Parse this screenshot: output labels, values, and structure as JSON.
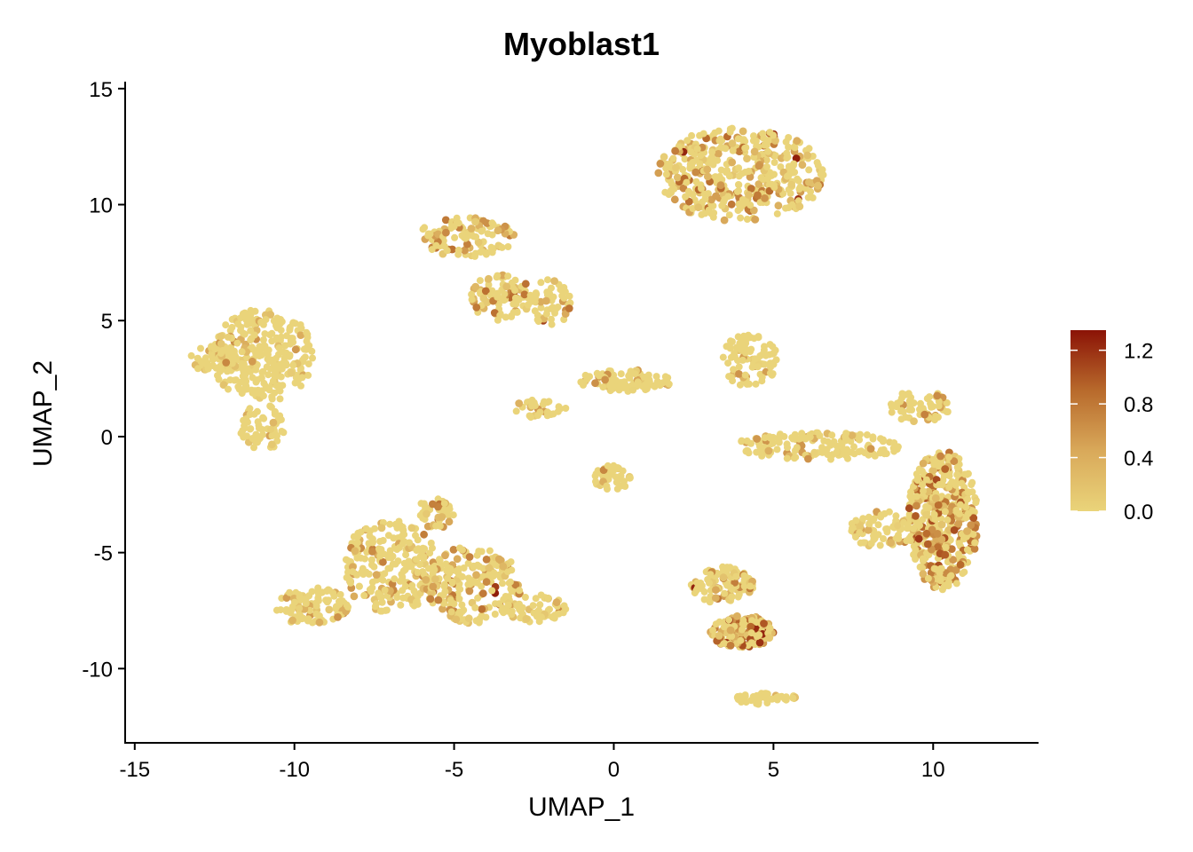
{
  "chart_data": {
    "type": "scatter",
    "title": "Myoblast1",
    "xlabel": "UMAP_1",
    "ylabel": "UMAP_2",
    "xlim": [
      -15.3,
      13.3
    ],
    "ylim": [
      -13.2,
      15.3
    ],
    "x_ticks": [
      -15,
      -10,
      -5,
      0,
      5,
      10
    ],
    "x_tick_labels": [
      "-15",
      "-10",
      "-5",
      "0",
      "5",
      "10"
    ],
    "y_ticks": [
      -10,
      -5,
      0,
      5,
      10,
      15
    ],
    "y_tick_labels": [
      "-10",
      "-5",
      "0",
      "5",
      "10",
      "15"
    ],
    "grid": false,
    "legend_position": "right",
    "color_scale": {
      "min": 0.0,
      "max": 1.35,
      "colors": [
        "#ead47a",
        "#d9a95a",
        "#b86a2c",
        "#8b1306"
      ],
      "ticks": [
        0.0,
        0.4,
        0.8,
        1.2
      ],
      "tick_labels": [
        "0.0",
        "0.4",
        "0.8",
        "1.2"
      ]
    },
    "clusters": [
      {
        "x": 3.9,
        "y": 11.3,
        "rx": 2.7,
        "ry": 2.0,
        "n": 420,
        "level": 0.32
      },
      {
        "x": -11.0,
        "y": 3.5,
        "rx": 1.6,
        "ry": 2.0,
        "n": 300,
        "level": 0.12
      },
      {
        "x": -11.0,
        "y": 0.4,
        "rx": 0.7,
        "ry": 1.0,
        "n": 60,
        "level": 0.1
      },
      {
        "x": -12.5,
        "y": 3.3,
        "rx": 0.8,
        "ry": 0.6,
        "n": 50,
        "level": 0.18
      },
      {
        "x": -4.6,
        "y": 8.6,
        "rx": 1.5,
        "ry": 0.9,
        "n": 110,
        "level": 0.28
      },
      {
        "x": -3.5,
        "y": 6.0,
        "rx": 1.0,
        "ry": 1.0,
        "n": 90,
        "level": 0.32
      },
      {
        "x": -2.0,
        "y": 5.8,
        "rx": 0.7,
        "ry": 1.0,
        "n": 50,
        "level": 0.3
      },
      {
        "x": 0.3,
        "y": 2.4,
        "rx": 1.5,
        "ry": 0.5,
        "n": 90,
        "level": 0.14
      },
      {
        "x": -2.3,
        "y": 1.2,
        "rx": 0.8,
        "ry": 0.5,
        "n": 30,
        "level": 0.2
      },
      {
        "x": -7.0,
        "y": -5.6,
        "rx": 1.5,
        "ry": 2.0,
        "n": 240,
        "level": 0.22
      },
      {
        "x": -4.4,
        "y": -6.4,
        "rx": 1.5,
        "ry": 1.7,
        "n": 200,
        "level": 0.3
      },
      {
        "x": -9.5,
        "y": -7.3,
        "rx": 1.2,
        "ry": 0.8,
        "n": 100,
        "level": 0.2
      },
      {
        "x": -2.5,
        "y": -7.4,
        "rx": 1.0,
        "ry": 0.6,
        "n": 60,
        "level": 0.18
      },
      {
        "x": -5.6,
        "y": -3.3,
        "rx": 0.6,
        "ry": 0.7,
        "n": 40,
        "level": 0.3
      },
      {
        "x": 4.3,
        "y": 3.3,
        "rx": 0.9,
        "ry": 1.2,
        "n": 90,
        "level": 0.12
      },
      {
        "x": 6.4,
        "y": -0.4,
        "rx": 2.6,
        "ry": 0.6,
        "n": 160,
        "level": 0.14
      },
      {
        "x": 9.6,
        "y": 1.3,
        "rx": 1.0,
        "ry": 0.7,
        "n": 60,
        "level": 0.2
      },
      {
        "x": 10.3,
        "y": -3.6,
        "rx": 1.1,
        "ry": 3.0,
        "n": 420,
        "level": 0.45
      },
      {
        "x": 8.4,
        "y": -4.0,
        "rx": 1.0,
        "ry": 0.8,
        "n": 80,
        "level": 0.22
      },
      {
        "x": 3.4,
        "y": -6.4,
        "rx": 1.0,
        "ry": 0.8,
        "n": 110,
        "level": 0.26
      },
      {
        "x": 4.0,
        "y": -8.4,
        "rx": 1.0,
        "ry": 0.7,
        "n": 150,
        "level": 0.6
      },
      {
        "x": 0.0,
        "y": -1.8,
        "rx": 0.6,
        "ry": 0.6,
        "n": 45,
        "level": 0.2
      },
      {
        "x": 4.8,
        "y": -11.3,
        "rx": 1.0,
        "ry": 0.25,
        "n": 45,
        "level": 0.06
      }
    ]
  }
}
